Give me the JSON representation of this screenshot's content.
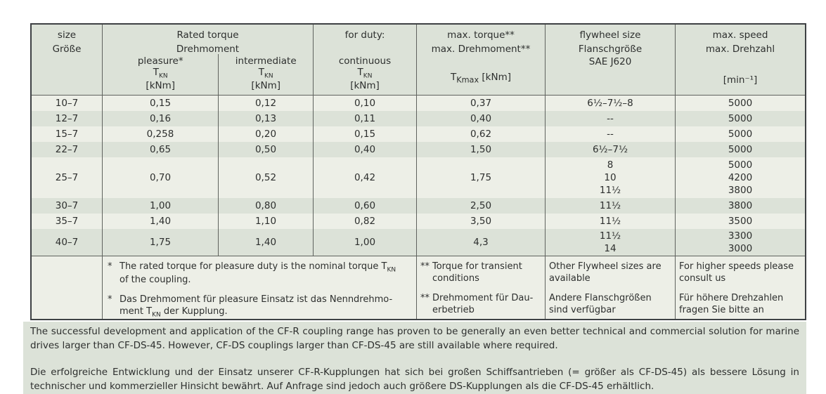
{
  "colors": {
    "band_dark": "#dce2d8",
    "band_light": "#edefe7",
    "outer_border": "#3e4144",
    "grid_line": "#5f625e",
    "text": "#2d2f2e",
    "page_background": "#ffffff"
  },
  "header": {
    "size": {
      "en": "size",
      "de": "Größe"
    },
    "rated": {
      "en": "Rated torque",
      "de": "Drehmoment"
    },
    "pleasure": {
      "label": "pleasure*",
      "sym": "T",
      "sym_sub": "KN",
      "unit": "[kNm]"
    },
    "intermediate": {
      "label": "intermediate",
      "sym": "T",
      "sym_sub": "KN",
      "unit": "[kNm]"
    },
    "duty": {
      "title": "for duty:",
      "label": "continuous",
      "sym": "T",
      "sym_sub": "KN",
      "unit": "[kNm]"
    },
    "max_torque": {
      "en": "max. torque**",
      "de": "max. Drehmoment**",
      "sym": "T",
      "sym_sub": "Kmax",
      "unit": " [kNm]"
    },
    "flywheel": {
      "en": "flywheel size",
      "de": "Flanschgröße",
      "std": "SAE J620"
    },
    "speed": {
      "en": "max. speed",
      "de": "max. Drehzahl",
      "unit": "[min⁻¹]"
    }
  },
  "rows": [
    {
      "size": "10–7",
      "pleasure": "0,15",
      "intermediate": "0,12",
      "continuous": "0,10",
      "max_torque": "0,37",
      "flywheel": "6½–7½–8",
      "speed": "5000"
    },
    {
      "size": "12–7",
      "pleasure": "0,16",
      "intermediate": "0,13",
      "continuous": "0,11",
      "max_torque": "0,40",
      "flywheel": "--",
      "speed": "5000"
    },
    {
      "size": "15–7",
      "pleasure": "0,258",
      "intermediate": "0,20",
      "continuous": "0,15",
      "max_torque": "0,62",
      "flywheel": "--",
      "speed": "5000"
    },
    {
      "size": "22–7",
      "pleasure": "0,65",
      "intermediate": "0,50",
      "continuous": "0,40",
      "max_torque": "1,50",
      "flywheel": "6½–7½",
      "speed": "5000"
    },
    {
      "size": "25–7",
      "pleasure": "0,70",
      "intermediate": "0,52",
      "continuous": "0,42",
      "max_torque": "1,75",
      "flywheel": "8\n10\n11½",
      "speed": "5000\n4200\n3800"
    },
    {
      "size": "30–7",
      "pleasure": "1,00",
      "intermediate": "0,80",
      "continuous": "0,60",
      "max_torque": "2,50",
      "flywheel": "11½",
      "speed": "3800"
    },
    {
      "size": "35–7",
      "pleasure": "1,40",
      "intermediate": "1,10",
      "continuous": "0,82",
      "max_torque": "3,50",
      "flywheel": "11½",
      "speed": "3500"
    },
    {
      "size": "40–7",
      "pleasure": "1,75",
      "intermediate": "1,40",
      "continuous": "1,00",
      "max_torque": "4,3",
      "flywheel": "11½\n14",
      "speed": "3300\n3000"
    }
  ],
  "footnotes": {
    "rated_en": {
      "marker": "*",
      "before": "The rated torque for pleasure duty is the nominal torque T",
      "sub": "KN",
      "after": "\nof the coupling."
    },
    "rated_de": {
      "marker": "*",
      "before": "Das Drehmoment für pleasure Einsatz ist das Nenndrehmo-\nment T",
      "sub": "KN",
      "after": " der Kupplung."
    },
    "max_en": {
      "marker": "**",
      "text": "Torque for transient\nconditions"
    },
    "max_de": {
      "marker": "**",
      "text": "Drehmoment für Dau-\nerbetrieb"
    },
    "flywheel_en": "Other Flywheel sizes are\navailable",
    "flywheel_de": "Andere Flanschgrößen\nsind verfügbar",
    "speed_en": "For higher speeds please\nconsult us",
    "speed_de": "Für höhere Drehzahlen\nfragen Sie bitte an"
  },
  "paragraphs": {
    "en": "The successful development and application of the CF-R coupling range has proven to be generally an even better technical and commercial solution for marine drives larger than CF-DS-45. However, CF-DS couplings larger than CF-DS-45 are still available where required.",
    "de": "Die erfolgreiche Entwicklung und der Einsatz unserer CF-R-Kupplungen hat sich bei großen Schiffsantrieben (= größer als CF-DS-45) als bessere Lösung in technischer und kommerzieller Hinsicht bewährt. Auf Anfrage sind jedoch auch größere DS-Kupplungen als die CF-DS-45 erhältlich."
  }
}
